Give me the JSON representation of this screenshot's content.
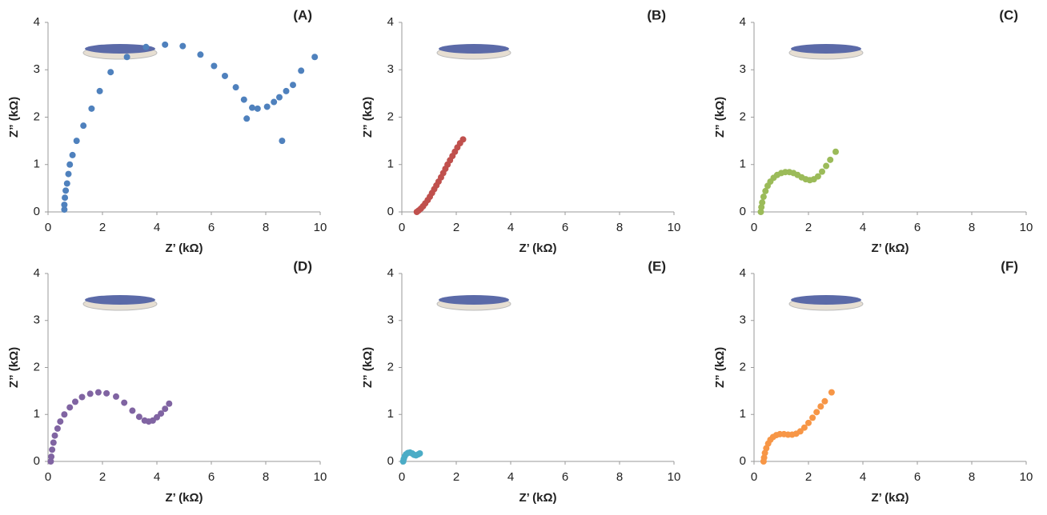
{
  "chart_data": [
    {
      "type": "scatter",
      "label": "(A)",
      "x_label": "Z’ (kΩ)",
      "y_label": "Z” (kΩ)",
      "color": "#4f81bd",
      "x": [
        0.6,
        0.6,
        0.62,
        0.65,
        0.7,
        0.75,
        0.8,
        0.9,
        1.05,
        1.3,
        1.6,
        1.9,
        2.3,
        2.9,
        3.6,
        4.3,
        4.95,
        5.6,
        6.1,
        6.5,
        6.9,
        7.2,
        7.3,
        7.5,
        7.7,
        8.05,
        8.3,
        8.5,
        8.6,
        8.75,
        9.0,
        9.3,
        9.8
      ],
      "values": [
        0.05,
        0.15,
        0.3,
        0.45,
        0.6,
        0.8,
        1.0,
        1.2,
        1.5,
        1.82,
        2.18,
        2.55,
        2.95,
        3.27,
        3.48,
        3.53,
        3.5,
        3.32,
        3.08,
        2.87,
        2.63,
        2.37,
        1.97,
        2.2,
        2.18,
        2.22,
        2.32,
        2.42,
        1.5,
        2.55,
        2.68,
        2.98,
        3.27
      ],
      "xlim": [
        0,
        10
      ],
      "ylim": [
        0,
        4
      ],
      "xticks": [
        0,
        2,
        4,
        6,
        8,
        10
      ],
      "yticks": [
        0,
        1,
        2,
        3,
        4
      ]
    },
    {
      "type": "scatter",
      "label": "(B)",
      "x_label": "Z’ (kΩ)",
      "y_label": "Z” (kΩ)",
      "color": "#c0504d",
      "x": [
        0.55,
        0.62,
        0.7,
        0.78,
        0.86,
        0.95,
        1.03,
        1.11,
        1.19,
        1.27,
        1.35,
        1.44,
        1.52,
        1.6,
        1.68,
        1.77,
        1.86,
        1.95,
        2.04,
        2.14,
        2.25
      ],
      "values": [
        0.0,
        0.03,
        0.07,
        0.12,
        0.18,
        0.25,
        0.32,
        0.4,
        0.48,
        0.56,
        0.64,
        0.73,
        0.82,
        0.91,
        1.0,
        1.09,
        1.18,
        1.27,
        1.36,
        1.45,
        1.53
      ],
      "xlim": [
        0,
        10
      ],
      "ylim": [
        0,
        4
      ],
      "xticks": [
        0,
        2,
        4,
        6,
        8,
        10
      ],
      "yticks": [
        0,
        1,
        2,
        3,
        4
      ]
    },
    {
      "type": "scatter",
      "label": "(C)",
      "x_label": "Z’ (kΩ)",
      "y_label": "Z” (kΩ)",
      "color": "#9bbb59",
      "x": [
        0.25,
        0.27,
        0.3,
        0.35,
        0.42,
        0.5,
        0.6,
        0.72,
        0.85,
        1.0,
        1.15,
        1.3,
        1.45,
        1.6,
        1.75,
        1.9,
        2.05,
        2.2,
        2.35,
        2.5,
        2.65,
        2.8,
        3.0
      ],
      "values": [
        0.0,
        0.1,
        0.2,
        0.32,
        0.44,
        0.55,
        0.64,
        0.72,
        0.78,
        0.82,
        0.84,
        0.84,
        0.82,
        0.78,
        0.73,
        0.69,
        0.67,
        0.69,
        0.75,
        0.85,
        0.97,
        1.1,
        1.27
      ],
      "xlim": [
        0,
        10
      ],
      "ylim": [
        0,
        4
      ],
      "xticks": [
        0,
        2,
        4,
        6,
        8,
        10
      ],
      "yticks": [
        0,
        1,
        2,
        3,
        4
      ]
    },
    {
      "type": "scatter",
      "label": "(D)",
      "x_label": "Z’ (kΩ)",
      "y_label": "Z” (kΩ)",
      "color": "#8064a2",
      "x": [
        0.1,
        0.12,
        0.15,
        0.2,
        0.25,
        0.35,
        0.45,
        0.6,
        0.8,
        1.0,
        1.25,
        1.55,
        1.85,
        2.15,
        2.5,
        2.8,
        3.1,
        3.35,
        3.55,
        3.7,
        3.85,
        4.0,
        4.15,
        4.3,
        4.45
      ],
      "values": [
        0.0,
        0.1,
        0.25,
        0.4,
        0.55,
        0.7,
        0.85,
        1.0,
        1.15,
        1.27,
        1.37,
        1.44,
        1.47,
        1.45,
        1.38,
        1.25,
        1.08,
        0.95,
        0.87,
        0.85,
        0.87,
        0.94,
        1.02,
        1.12,
        1.23
      ],
      "xlim": [
        0,
        10
      ],
      "ylim": [
        0,
        4
      ],
      "xticks": [
        0,
        2,
        4,
        6,
        8,
        10
      ],
      "yticks": [
        0,
        1,
        2,
        3,
        4
      ]
    },
    {
      "type": "scatter",
      "label": "(E)",
      "x_label": "Z’ (kΩ)",
      "y_label": "Z” (kΩ)",
      "color": "#4bacc6",
      "x": [
        0.05,
        0.07,
        0.1,
        0.15,
        0.22,
        0.3,
        0.38,
        0.45,
        0.52,
        0.6,
        0.66
      ],
      "values": [
        0.0,
        0.05,
        0.1,
        0.15,
        0.18,
        0.19,
        0.17,
        0.14,
        0.13,
        0.15,
        0.17
      ],
      "xlim": [
        0,
        10
      ],
      "ylim": [
        0,
        4
      ],
      "xticks": [
        0,
        2,
        4,
        6,
        8,
        10
      ],
      "yticks": [
        0,
        1,
        2,
        3,
        4
      ]
    },
    {
      "type": "scatter",
      "label": "(F)",
      "x_label": "Z’ (kΩ)",
      "y_label": "Z” (kΩ)",
      "color": "#f79646",
      "x": [
        0.35,
        0.37,
        0.4,
        0.45,
        0.52,
        0.6,
        0.7,
        0.82,
        0.95,
        1.1,
        1.25,
        1.4,
        1.55,
        1.7,
        1.85,
        2.0,
        2.15,
        2.3,
        2.45,
        2.6,
        2.85
      ],
      "values": [
        0.0,
        0.08,
        0.18,
        0.28,
        0.38,
        0.46,
        0.52,
        0.56,
        0.58,
        0.58,
        0.57,
        0.57,
        0.59,
        0.64,
        0.72,
        0.82,
        0.93,
        1.05,
        1.17,
        1.28,
        1.47
      ],
      "xlim": [
        0,
        10
      ],
      "ylim": [
        0,
        4
      ],
      "xticks": [
        0,
        2,
        4,
        6,
        8,
        10
      ],
      "yticks": [
        0,
        1,
        2,
        3,
        4
      ]
    }
  ]
}
